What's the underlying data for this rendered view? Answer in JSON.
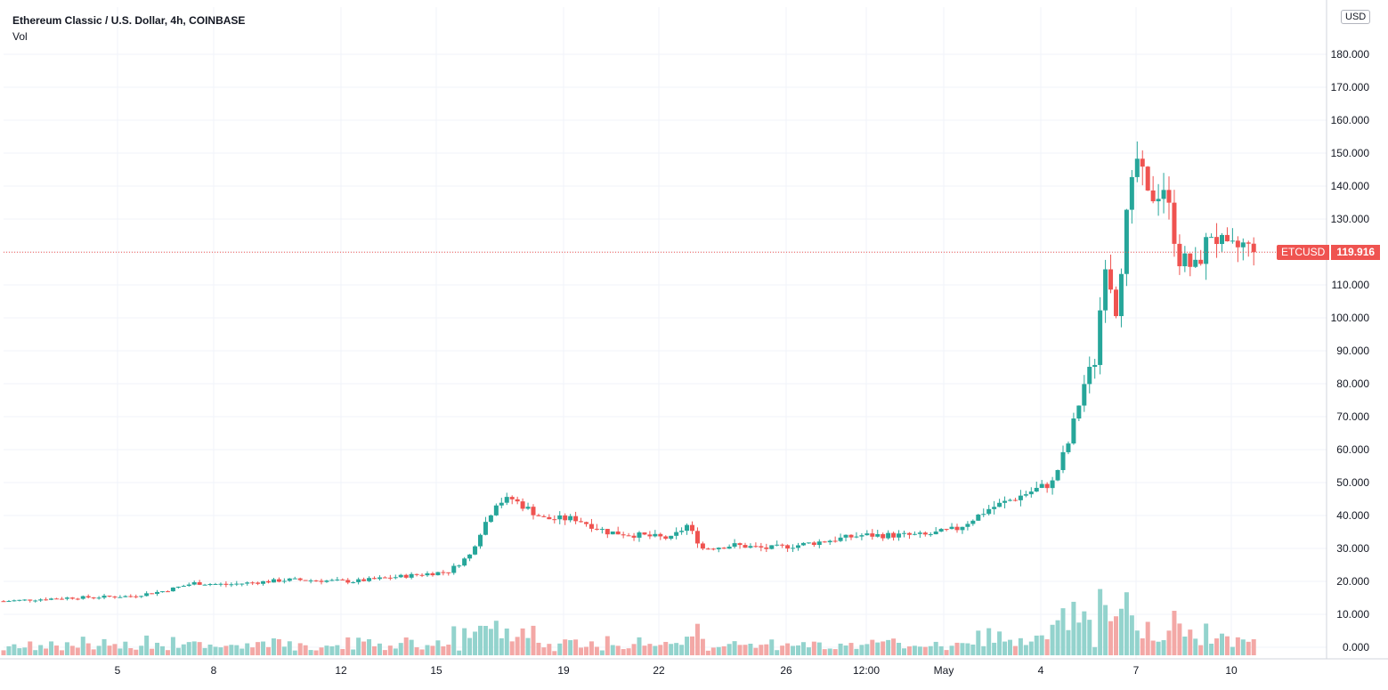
{
  "header": {
    "title": "Ethereum Classic / U.S. Dollar, 4h, COINBASE",
    "volume_label": "Vol"
  },
  "currency_button": "USD",
  "last_price": {
    "symbol": "ETCUSD",
    "value": "119.916"
  },
  "colors": {
    "up": "#26a69a",
    "down": "#ef5350",
    "up_volume": "#93d3cd",
    "down_volume": "#f3a8a6",
    "grid": "#f0f3fa"
  },
  "chart_data": {
    "type": "candlestick",
    "ylim": [
      0,
      190
    ],
    "y_ticks": [
      "0.000",
      "10.000",
      "20.000",
      "30.000",
      "40.000",
      "50.000",
      "60.000",
      "70.000",
      "80.000",
      "90.000",
      "100.000",
      "110.000",
      "120.000",
      "130.000",
      "140.000",
      "150.000",
      "160.000",
      "170.000",
      "180.000"
    ],
    "x_ticks": [
      "5",
      "8",
      "12",
      "15",
      "19",
      "22",
      "26",
      "12:00",
      "May",
      "4",
      "7",
      "10"
    ],
    "last_value": 119.916,
    "anchors": [
      {
        "t": "2021-04-01",
        "close": 14
      },
      {
        "t": "2021-04-03",
        "close": 15
      },
      {
        "t": "2021-04-05",
        "close": 15.5
      },
      {
        "t": "2021-04-06",
        "close": 17
      },
      {
        "t": "2021-04-07",
        "close": 19.5
      },
      {
        "t": "2021-04-08",
        "close": 19
      },
      {
        "t": "2021-04-10",
        "close": 20.5
      },
      {
        "t": "2021-04-12",
        "close": 20
      },
      {
        "t": "2021-04-14",
        "close": 22
      },
      {
        "t": "2021-04-15",
        "close": 23
      },
      {
        "t": "2021-04-15T16:00",
        "close": 28
      },
      {
        "t": "2021-04-16",
        "close": 35
      },
      {
        "t": "2021-04-16T12:00",
        "close": 44
      },
      {
        "t": "2021-04-17",
        "close": 45
      },
      {
        "t": "2021-04-18",
        "close": 39
      },
      {
        "t": "2021-04-19",
        "close": 39
      },
      {
        "t": "2021-04-20",
        "close": 35
      },
      {
        "t": "2021-04-21",
        "close": 34
      },
      {
        "t": "2021-04-22",
        "close": 33
      },
      {
        "t": "2021-04-22T12:00",
        "close": 37
      },
      {
        "t": "2021-04-23",
        "close": 30
      },
      {
        "t": "2021-04-24",
        "close": 31
      },
      {
        "t": "2021-04-25",
        "close": 30
      },
      {
        "t": "2021-04-26",
        "close": 31
      },
      {
        "t": "2021-04-28",
        "close": 34
      },
      {
        "t": "2021-04-30",
        "close": 34
      },
      {
        "t": "2021-05-01",
        "close": 36
      },
      {
        "t": "2021-05-02",
        "close": 42
      },
      {
        "t": "2021-05-03",
        "close": 46
      },
      {
        "t": "2021-05-04",
        "close": 50
      },
      {
        "t": "2021-05-04T12:00",
        "close": 62
      },
      {
        "t": "2021-05-05",
        "close": 80
      },
      {
        "t": "2021-05-05T08:00",
        "close": 87
      },
      {
        "t": "2021-05-05T16:00",
        "close": 118
      },
      {
        "t": "2021-05-06",
        "close": 103
      },
      {
        "t": "2021-05-06T08:00",
        "close": 130
      },
      {
        "t": "2021-05-06T16:00",
        "close": 148
      },
      {
        "t": "2021-05-07",
        "close": 136
      },
      {
        "t": "2021-05-07T12:00",
        "close": 140
      },
      {
        "t": "2021-05-08",
        "close": 118
      },
      {
        "t": "2021-05-08T12:00",
        "close": 115
      },
      {
        "t": "2021-05-09",
        "close": 126
      },
      {
        "t": "2021-05-09T12:00",
        "close": 120
      },
      {
        "t": "2021-05-10",
        "close": 122
      },
      {
        "t": "2021-05-10T08:00",
        "close": 119.9
      }
    ]
  }
}
